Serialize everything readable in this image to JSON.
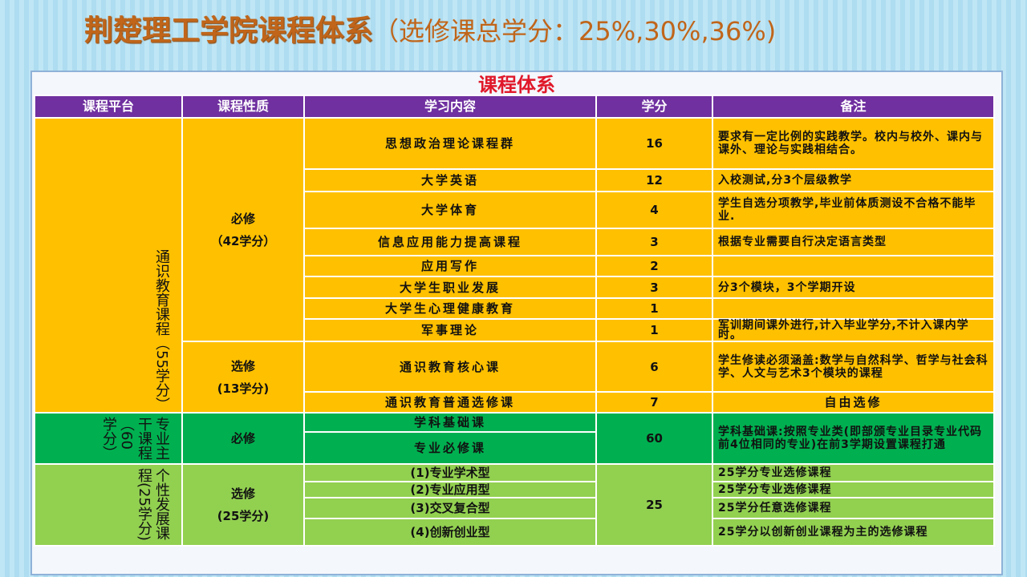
{
  "title": {
    "main": "荆楚理工学院课程体系",
    "sub": "（选修课总学分：25%,30%,36%)"
  },
  "caption": "课程体系",
  "headers": [
    "课程平台",
    "课程性质",
    "学习内容",
    "学分",
    "备注"
  ],
  "platforms": [
    "通识教育课程（55学分）",
    "专业主干课程（60学分）",
    "个性发展课程(25学分)"
  ],
  "natures": [
    {
      "label": "必修",
      "sub": "（42学分）"
    },
    {
      "label": "选修",
      "sub": "(13学分)"
    },
    {
      "label": "必修",
      "sub": ""
    },
    {
      "label": "选修",
      "sub": "(25学分)"
    }
  ],
  "rows": [
    {
      "content": "思想政治理论课程群",
      "credit": "16",
      "note": "要求有一定比例的实践教学。校内与校外、课内与课外、理论与实践相结合。"
    },
    {
      "content": "大学英语",
      "credit": "12",
      "note": "入校测试,分3个层级教学"
    },
    {
      "content": "大学体育",
      "credit": "4",
      "note": "学生自选分项教学,毕业前体质测设不合格不能毕业."
    },
    {
      "content": "信息应用能力提高课程",
      "credit": "3",
      "note": "根据专业需要自行决定语言类型"
    },
    {
      "content": "应用写作",
      "credit": "2",
      "note": ""
    },
    {
      "content": "大学生职业发展",
      "credit": "3",
      "note": "分3个模块，3个学期开设"
    },
    {
      "content": "大学生心理健康教育",
      "credit": "1",
      "note": ""
    },
    {
      "content": "军事理论",
      "credit": "1",
      "note": "军训期间课外进行,计入毕业学分,不计入课内学时。"
    },
    {
      "content": "通识教育核心课",
      "credit": "6",
      "note": "学生修读必须涵盖:数学与自然科学、哲学与社会科学、人文与艺术3个模块的课程"
    },
    {
      "content": "通识教育普通选修课",
      "credit": "7",
      "note": "自由选修"
    },
    {
      "content": "学科基础课",
      "credit": "60",
      "note": "学科基础课:按照专业类(即部颁专业目录专业代码前4位相同的专业)在前3学期设置课程打通"
    },
    {
      "content": "专业必修课"
    },
    {
      "content": "(1)专业学术型",
      "credit": "25",
      "note": "25学分专业选修课程"
    },
    {
      "content": "(2)专业应用型",
      "note": "25学分专业选修课程"
    },
    {
      "content": "(3)交叉复合型",
      "note": "25学分任意选修课程"
    },
    {
      "content": "(4)创新创业型",
      "note": "25学分以创新创业课程为主的选修课程"
    }
  ],
  "colors": {
    "header": "#7030a0",
    "general": "#ffc000",
    "major": "#00b050",
    "personal": "#92d050",
    "title": "#c0651a",
    "caption": "#e0182a"
  }
}
